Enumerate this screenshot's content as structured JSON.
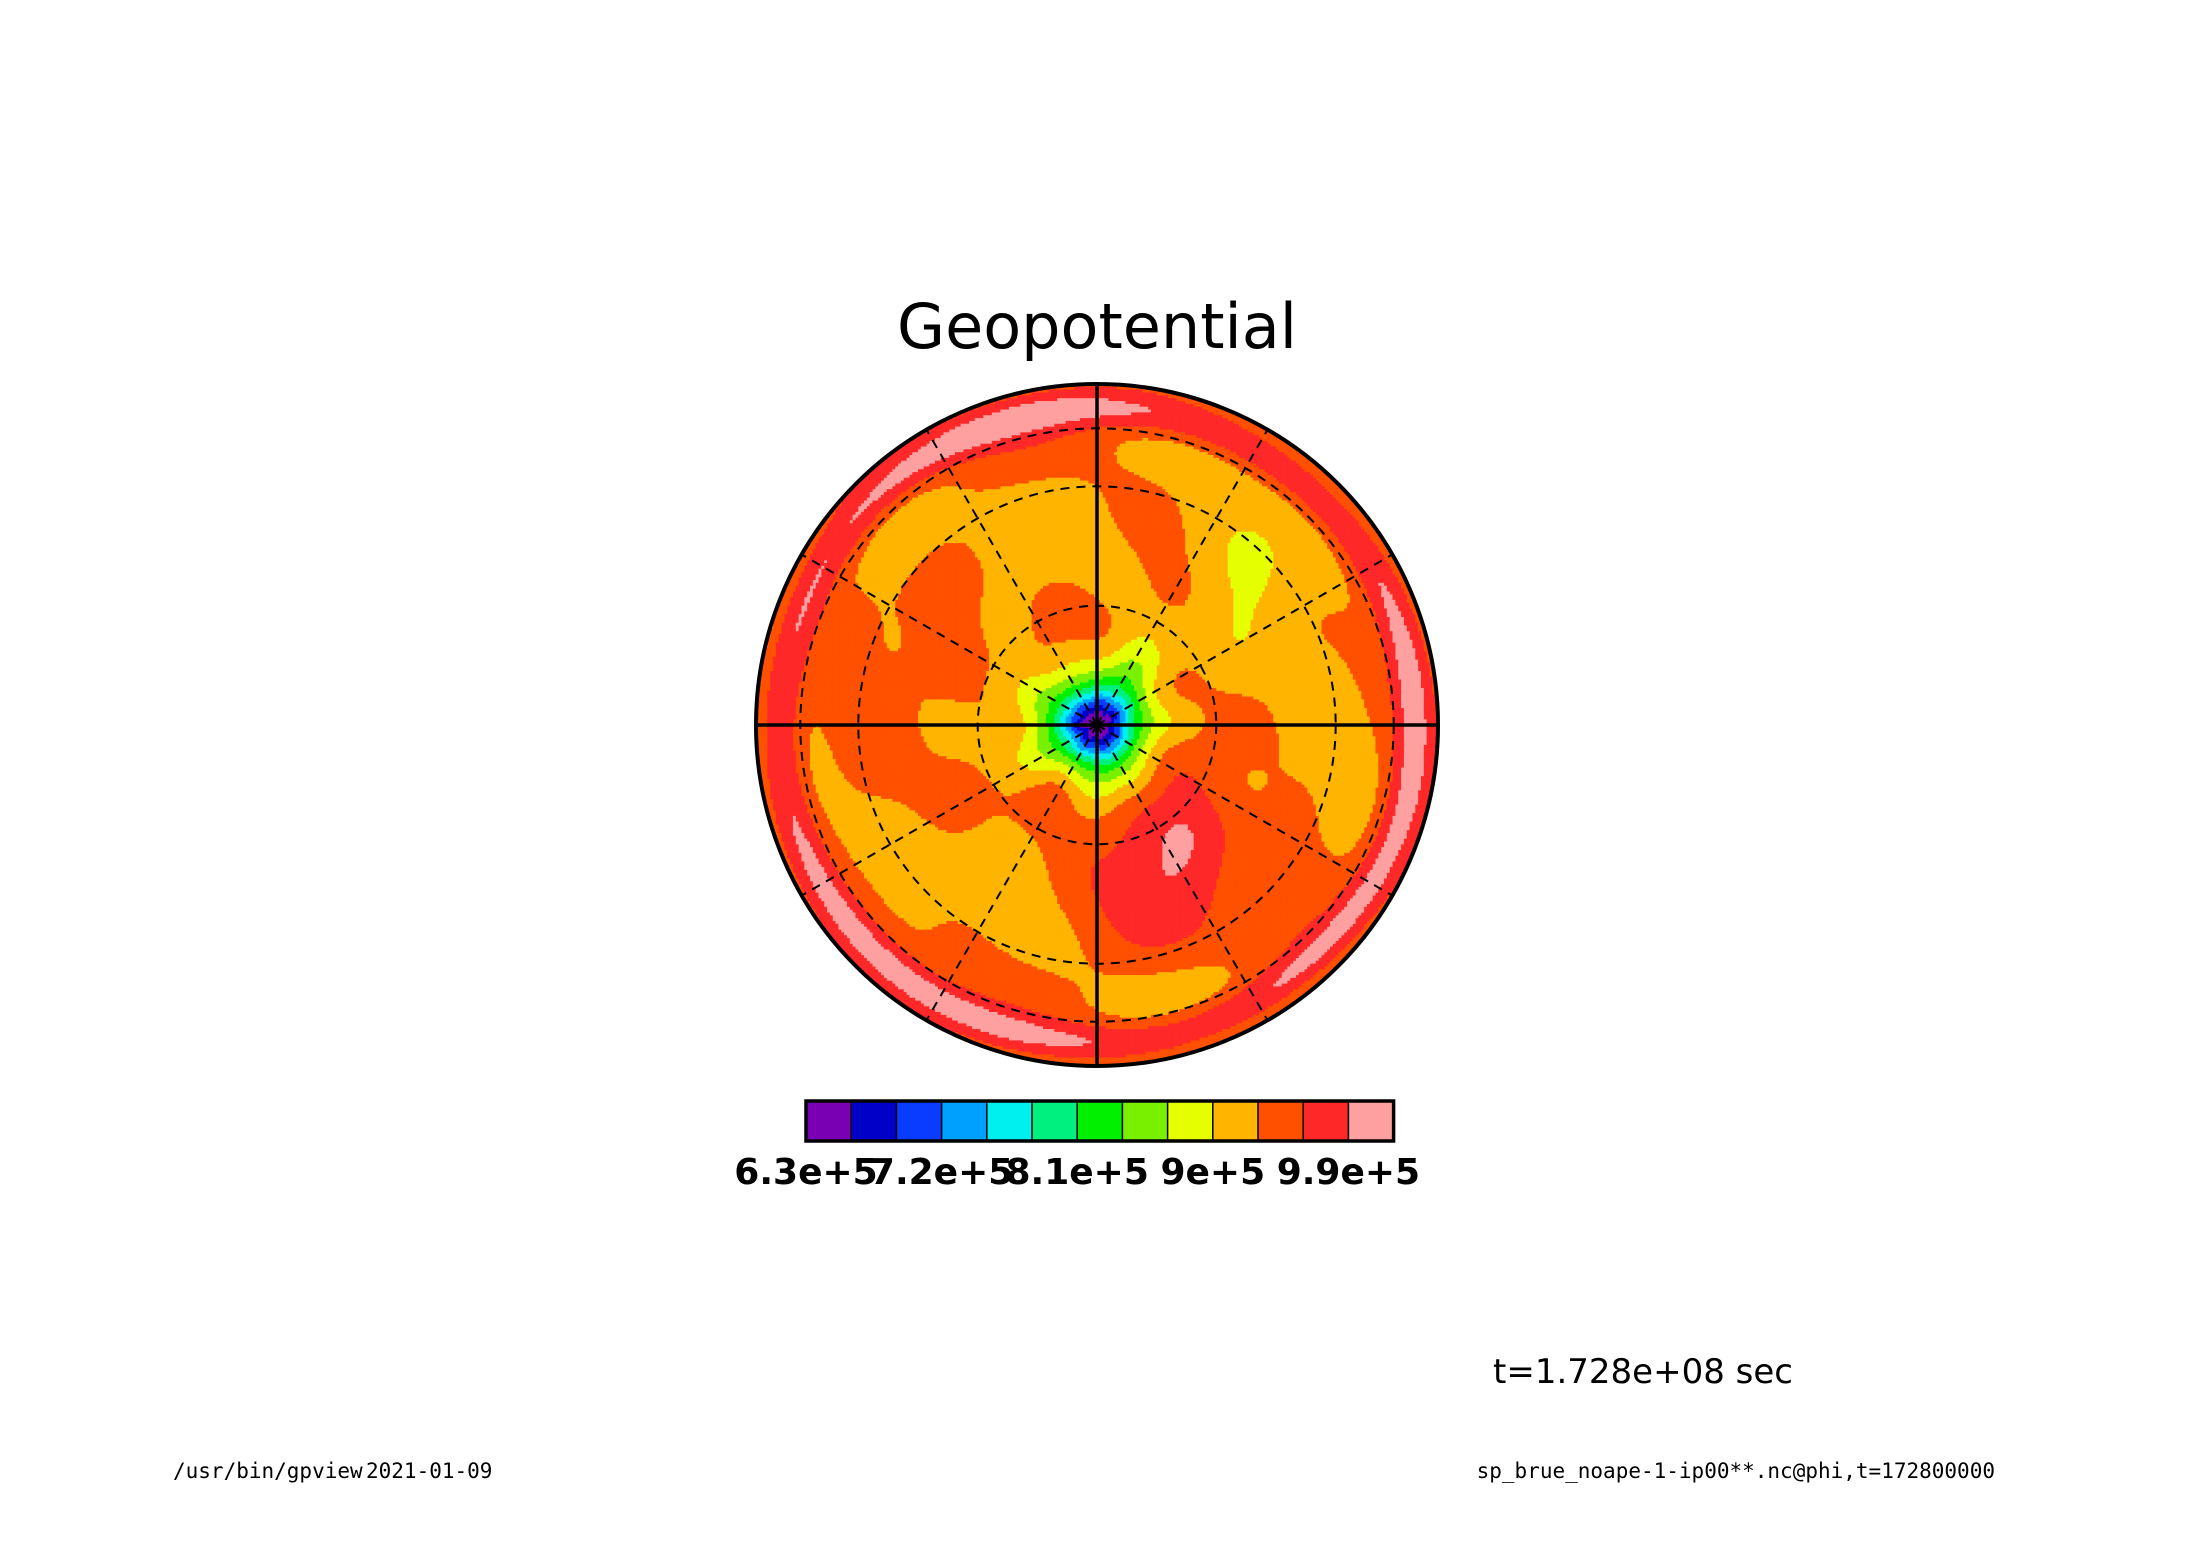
{
  "chart_data": {
    "type": "heatmap",
    "title": "Geopotential",
    "projection": "polar stereographic (pole at center)",
    "grid_lines": true,
    "colorbar": {
      "colors": [
        "#7a00b4",
        "#0000c8",
        "#0a3cff",
        "#00a0ff",
        "#00f0f0",
        "#00f080",
        "#00f000",
        "#78f000",
        "#e6ff00",
        "#ffb400",
        "#ff5000",
        "#ff2828",
        "#ffa0a0"
      ],
      "tick_labels": [
        "6.3e+5",
        "7.2e+5",
        "8.1e+5",
        "9e+5",
        "9.9e+5"
      ],
      "ticks": [
        630000,
        720000,
        810000,
        900000,
        990000
      ],
      "range": [
        630000,
        1020000
      ],
      "placement": "bottom"
    },
    "field_summary": {
      "center_minimum": 630000,
      "outer_ring_level": 990000,
      "typical_level": 930000
    }
  },
  "time_label": "t=1.728e+08 sec",
  "footer": {
    "left_program": "/usr/bin/gpview",
    "left_date": "2021-01-09",
    "right": "sp_brue_noape-1-ip00**.nc@phi,t=172800000"
  }
}
